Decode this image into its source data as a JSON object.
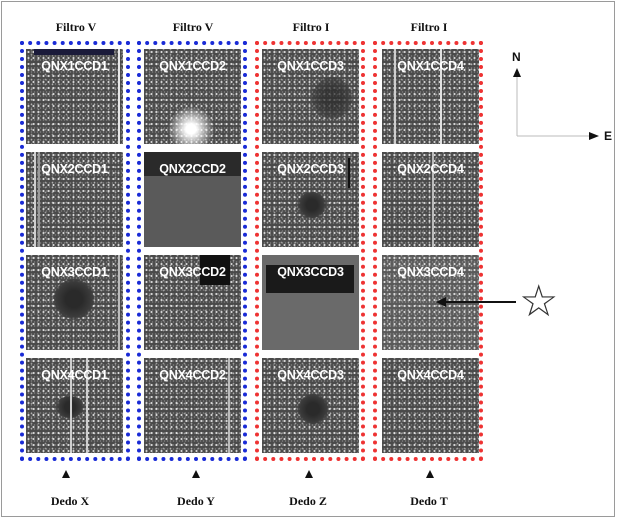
{
  "columns": [
    {
      "filter": "Filtro V",
      "finger": "Dedo X",
      "color": "#1a2bd6"
    },
    {
      "filter": "Filtro V",
      "finger": "Dedo Y",
      "color": "#1a2bd6"
    },
    {
      "filter": "Filtro I",
      "finger": "Dedo Z",
      "color": "#ee3333"
    },
    {
      "filter": "Filtro I",
      "finger": "Dedo T",
      "color": "#ee3333"
    }
  ],
  "ccds": [
    [
      "QNX1CCD1",
      "QNX2CCD1",
      "QNX3CCD1",
      "QNX4CCD1"
    ],
    [
      "QNX1CCD2",
      "QNX2CCD2",
      "QNX3CCD2",
      "QNX4CCD2"
    ],
    [
      "QNX1CCD3",
      "QNX2CCD3",
      "QNX3CCD3",
      "QNX4CCD3"
    ],
    [
      "QNX1CCD4",
      "QNX2CCD4",
      "QNX3CCD4",
      "QNX4CCD4"
    ]
  ],
  "compass": {
    "north": "N",
    "east": "E"
  },
  "star_symbol": "☆"
}
